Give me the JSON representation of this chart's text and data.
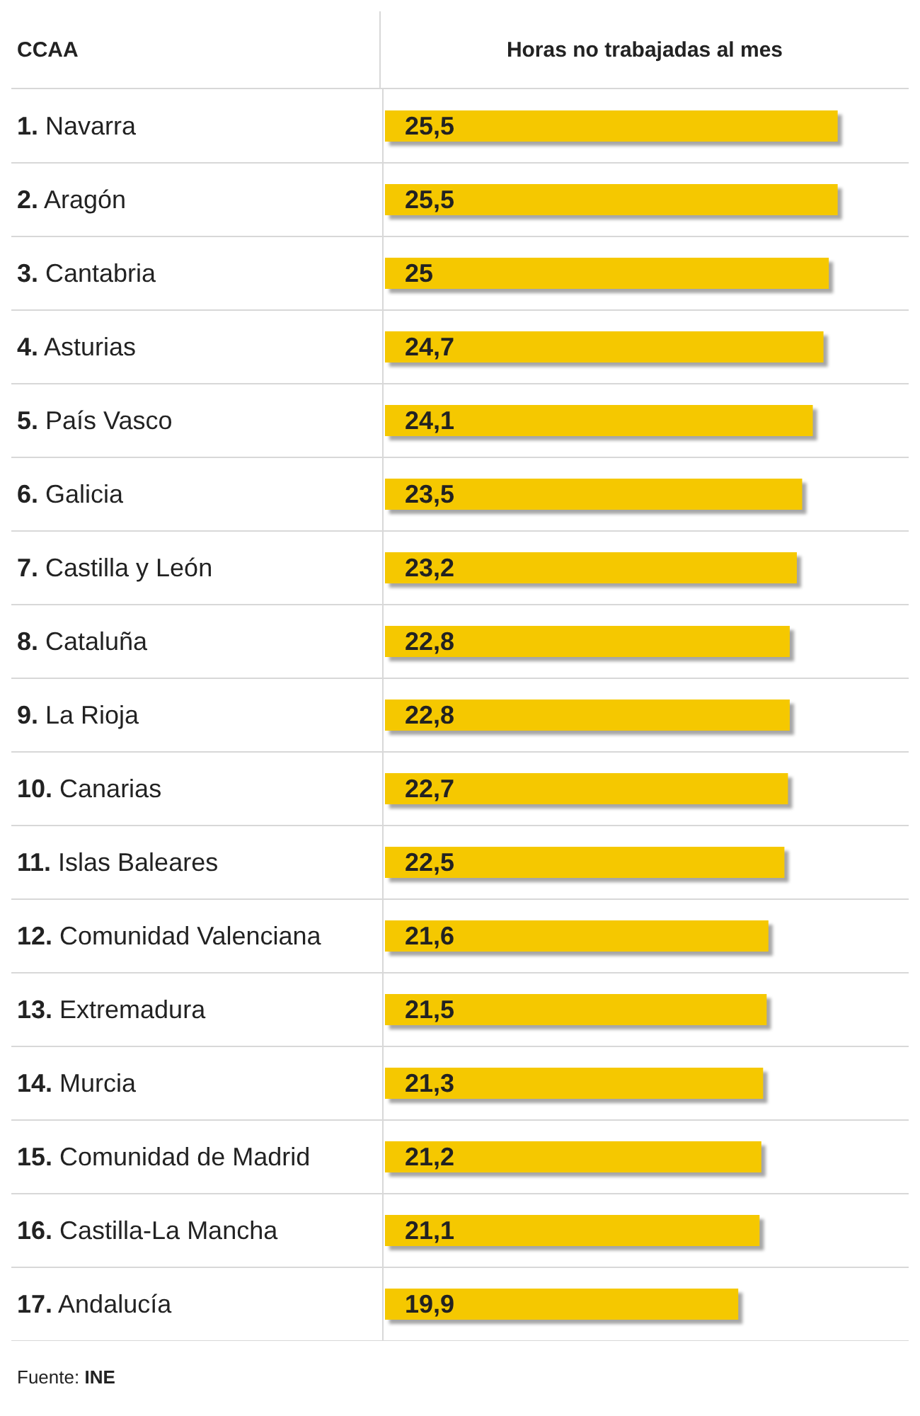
{
  "chart_data": {
    "type": "bar",
    "orientation": "horizontal",
    "title": "Horas no trabajadas al mes",
    "ylabel": "CCAA",
    "categories": [
      "1. Navarra",
      "2. Aragón",
      "3. Cantabria",
      "4. Asturias",
      "5. País Vasco",
      "6. Galicia",
      "7. Castilla y León",
      "8. Cataluña",
      "9. La Rioja",
      "10. Canarias",
      "11. Islas Baleares",
      "12. Comunidad Valenciana",
      "13. Extremadura",
      "14. Murcia",
      "15. Comunidad de Madrid",
      "16. Castilla-La Mancha",
      "17. Andalucía"
    ],
    "values": [
      25.5,
      25.5,
      25,
      24.7,
      24.1,
      23.5,
      23.2,
      22.8,
      22.8,
      22.7,
      22.5,
      21.6,
      21.5,
      21.3,
      21.2,
      21.1,
      19.9
    ],
    "value_labels": [
      "25,5",
      "25,5",
      "25",
      "24,7",
      "24,1",
      "23,5",
      "23,2",
      "22,8",
      "22,8",
      "22,7",
      "22,5",
      "21,6",
      "21,5",
      "21,3",
      "21,2",
      "21,1",
      "19,9"
    ],
    "color": "#f5c800",
    "xlim": [
      0,
      29.5
    ],
    "tick_labels": "y",
    "grid": "y",
    "legend": false,
    "annotations": [
      "Fuente: INE"
    ]
  }
}
